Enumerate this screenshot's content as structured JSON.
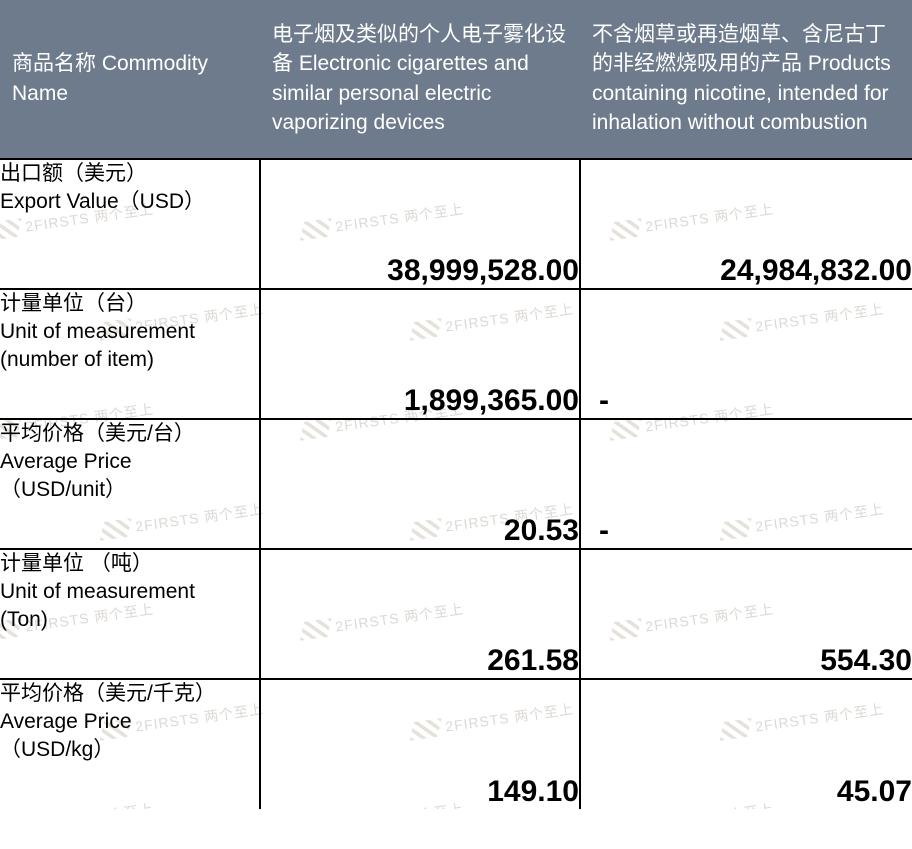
{
  "colors": {
    "header_bg": "#6d7b8d",
    "header_text": "#ffffff",
    "body_text": "#000000",
    "border": "#000000",
    "watermark": "#d9d4cf",
    "background": "#ffffff"
  },
  "watermark_text": "2FIRSTS 两个至上",
  "header": {
    "col0": "商品名称\nCommodity Name",
    "col1": "电子烟及类似的个人电子雾化设备\nElectronic cigarettes and similar personal electric vaporizing devices",
    "col2": "不含烟草或再造烟草、含尼古丁的非经燃烧吸用的产品\nProducts containing nicotine, intended for inhalation without combustion"
  },
  "rows": [
    {
      "label": "出口额（美元）\n Export Value（USD）",
      "col1": "38,999,528.00",
      "col2": "24,984,832.00",
      "col2_dash": false
    },
    {
      "label": "计量单位（台）\nUnit of measurement\n(number of item)",
      "col1": "1,899,365.00",
      "col2": "-",
      "col2_dash": true
    },
    {
      "label": "平均价格（美元/台）\nAverage Price\n（USD/unit）",
      "col1": "20.53",
      "col2": "-",
      "col2_dash": true
    },
    {
      "label": "计量单位 （吨）\nUnit of measurement\n(Ton)",
      "col1": "261.58",
      "col2": "554.30",
      "col2_dash": false
    },
    {
      "label": "平均价格（美元/千克）\nAverage Price\n（USD/kg）",
      "col1": "149.10",
      "col2": "45.07",
      "col2_dash": false
    }
  ]
}
